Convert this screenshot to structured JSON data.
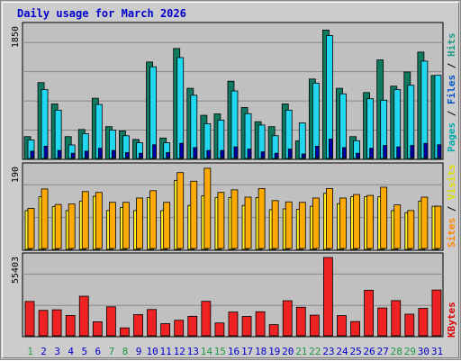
{
  "title": "Daily usage for March 2026",
  "colors": {
    "pages": "#0f7a60",
    "files": "#22d8f0",
    "hits": "#22d8f0",
    "visits": "#ffaa00",
    "sites": "#ffee22",
    "kbytes": "#ee2222",
    "weekend_label": "#229944",
    "weekday_label": "#0000cc",
    "legend_pages": "#00aaaa",
    "legend_files": "#0055cc",
    "legend_hits": "#229988",
    "legend_sites": "#ff8800",
    "legend_visits": "#dddd00",
    "legend_kbytes": "#dd0000",
    "panel_bg": "#c0c0c0"
  },
  "chart_data": [
    {
      "type": "bar",
      "title": "",
      "ymax_label": "1850",
      "ylim": [
        0,
        1850
      ],
      "legend": [
        "Pages",
        "/",
        "Files",
        "/",
        "Hits"
      ],
      "x": [
        "1",
        "2",
        "3",
        "4",
        "5",
        "6",
        "7",
        "8",
        "9",
        "10",
        "11",
        "12",
        "13",
        "14",
        "15",
        "16",
        "17",
        "18",
        "19",
        "20",
        "21",
        "22",
        "23",
        "24",
        "25",
        "26",
        "27",
        "28",
        "29",
        "30",
        "31"
      ],
      "weekend_days": [
        "1",
        "7",
        "8",
        "14",
        "15",
        "21",
        "22",
        "28",
        "29"
      ],
      "series": [
        {
          "name": "Hits",
          "values": [
            320,
            1080,
            780,
            320,
            420,
            860,
            460,
            400,
            280,
            1370,
            300,
            1560,
            1000,
            620,
            640,
            1100,
            730,
            530,
            460,
            780,
            260,
            1130,
            1820,
            1000,
            320,
            940,
            1400,
            1030,
            1230,
            1510,
            1180
          ]
        },
        {
          "name": "Files",
          "values": [
            260,
            970,
            680,
            190,
            350,
            760,
            400,
            320,
            220,
            1290,
            220,
            1420,
            890,
            490,
            540,
            950,
            630,
            470,
            320,
            680,
            500,
            1060,
            1730,
            910,
            250,
            840,
            820,
            970,
            1030,
            1370,
            1170
          ]
        },
        {
          "name": "Pages",
          "values": [
            90,
            160,
            100,
            60,
            90,
            130,
            100,
            70,
            60,
            180,
            70,
            200,
            140,
            100,
            100,
            150,
            120,
            80,
            60,
            120,
            50,
            160,
            260,
            140,
            60,
            130,
            170,
            150,
            170,
            200,
            180
          ]
        }
      ]
    },
    {
      "type": "bar",
      "title": "",
      "ymax_label": "190",
      "ylim": [
        0,
        190
      ],
      "legend": [
        "Sites",
        "/",
        "Visits"
      ],
      "x": [
        "1",
        "2",
        "3",
        "4",
        "5",
        "6",
        "7",
        "8",
        "9",
        "10",
        "11",
        "12",
        "13",
        "14",
        "15",
        "16",
        "17",
        "18",
        "19",
        "20",
        "21",
        "22",
        "23",
        "24",
        "25",
        "26",
        "27",
        "28",
        "29",
        "30",
        "31"
      ],
      "series": [
        {
          "name": "Visits",
          "values": [
            93,
            138,
            102,
            103,
            132,
            130,
            107,
            107,
            117,
            134,
            107,
            176,
            156,
            186,
            130,
            136,
            119,
            139,
            111,
            108,
            107,
            117,
            139,
            117,
            125,
            123,
            142,
            101,
            88,
            119,
            98
          ]
        },
        {
          "name": "Sites",
          "values": [
            90,
            122,
            99,
            90,
            112,
            123,
            90,
            97,
            90,
            120,
            90,
            160,
            102,
            124,
            120,
            120,
            102,
            120,
            92,
            94,
            93,
            100,
            130,
            106,
            122,
            122,
            122,
            90,
            85,
            112,
            100
          ]
        }
      ]
    },
    {
      "type": "bar",
      "title": "",
      "ymax_label": "55403",
      "ylim": [
        0,
        55403
      ],
      "legend": [
        "KBytes"
      ],
      "x": [
        "1",
        "2",
        "3",
        "4",
        "5",
        "6",
        "7",
        "8",
        "9",
        "10",
        "11",
        "12",
        "13",
        "14",
        "15",
        "16",
        "17",
        "18",
        "19",
        "20",
        "21",
        "22",
        "23",
        "24",
        "25",
        "26",
        "27",
        "28",
        "29",
        "30",
        "31"
      ],
      "series": [
        {
          "name": "KBytes",
          "values": [
            24300,
            18000,
            18400,
            14400,
            28000,
            9900,
            20500,
            5600,
            15000,
            18600,
            8600,
            11000,
            13800,
            24400,
            9100,
            16800,
            13700,
            17000,
            7900,
            24800,
            20200,
            14600,
            55400,
            14300,
            10100,
            32200,
            19700,
            24900,
            15300,
            19400,
            32400
          ]
        }
      ]
    }
  ]
}
